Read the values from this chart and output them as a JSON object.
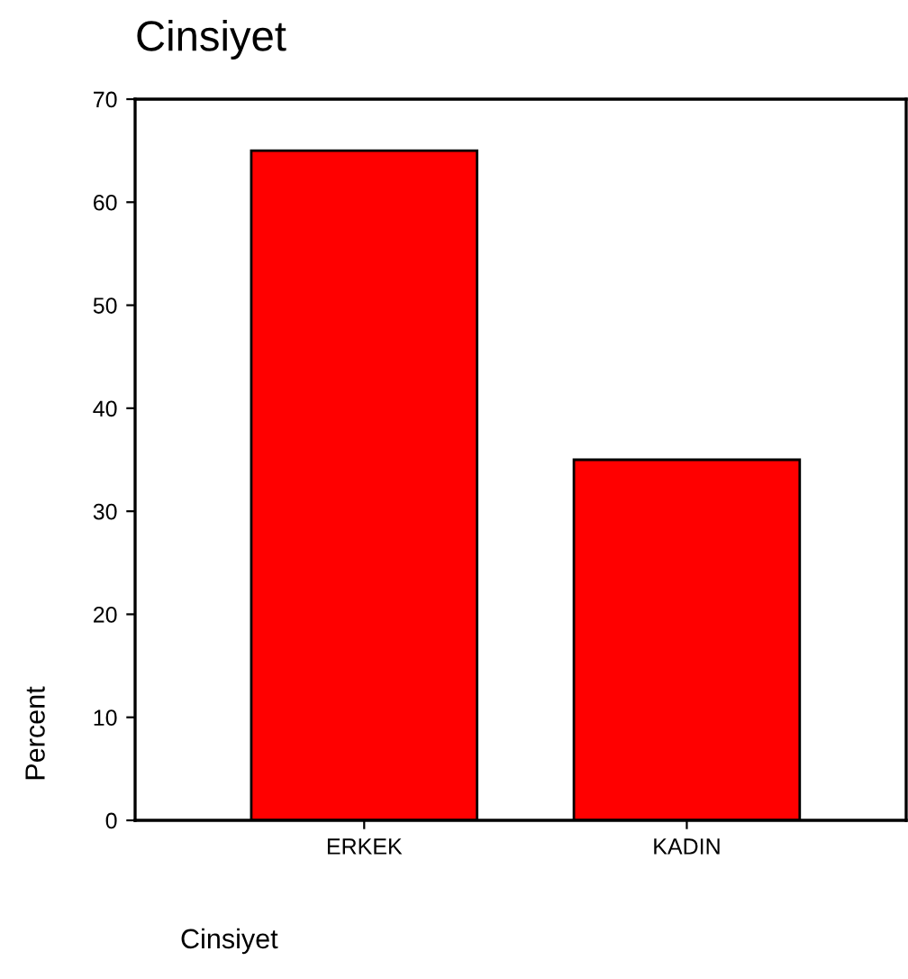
{
  "chart_data": {
    "type": "bar",
    "title": "Cinsiyet",
    "ylabel": "Percent",
    "categories": [
      "ERKEK",
      "KADIN"
    ],
    "values": [
      65,
      35
    ],
    "color": "#ff0000",
    "ylim": [
      0,
      70
    ],
    "yticks": [
      0,
      10,
      20,
      30,
      40,
      50,
      60,
      70
    ],
    "grid": false,
    "annotations": [
      "Cinsiyet"
    ]
  }
}
